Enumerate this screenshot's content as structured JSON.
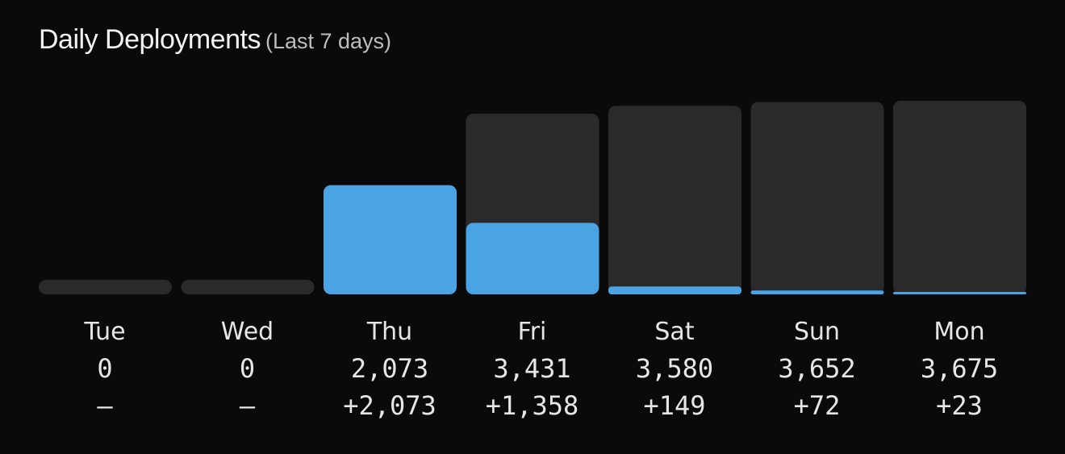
{
  "header": {
    "title": "Daily Deployments",
    "subtitle": "(Last 7 days)"
  },
  "colors": {
    "background": "#0a0a0a",
    "track": "#2a2a2a",
    "accent": "#4aa3e3"
  },
  "chart_data": {
    "type": "bar",
    "categories": [
      "Tue",
      "Wed",
      "Thu",
      "Fri",
      "Sat",
      "Sun",
      "Mon"
    ],
    "totals": [
      0,
      0,
      2073,
      3431,
      3580,
      3652,
      3675
    ],
    "total_labels": [
      "0",
      "0",
      "2,073",
      "3,431",
      "3,580",
      "3,652",
      "3,675"
    ],
    "deltas": [
      0,
      0,
      2073,
      1358,
      149,
      72,
      23
    ],
    "delta_labels": [
      "—",
      "—",
      "+2,073",
      "+1,358",
      "+149",
      "+72",
      "+23"
    ],
    "ylim": [
      0,
      3675
    ]
  }
}
